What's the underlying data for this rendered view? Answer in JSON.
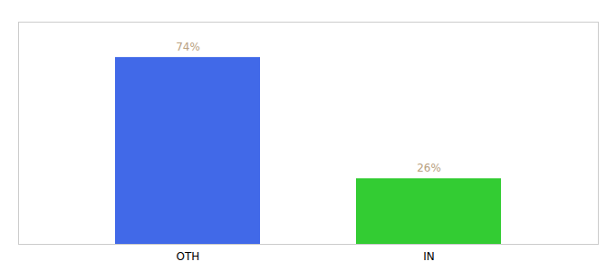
{
  "chart_data": {
    "type": "bar",
    "categories": [
      "OTH",
      "IN"
    ],
    "values": [
      74,
      26
    ],
    "colors": [
      "#4169e8",
      "#33cc33"
    ],
    "data_labels": true,
    "value_labels": [
      "74%",
      "26%"
    ],
    "ylim": [
      0,
      88
    ],
    "tick_labels": "x"
  }
}
